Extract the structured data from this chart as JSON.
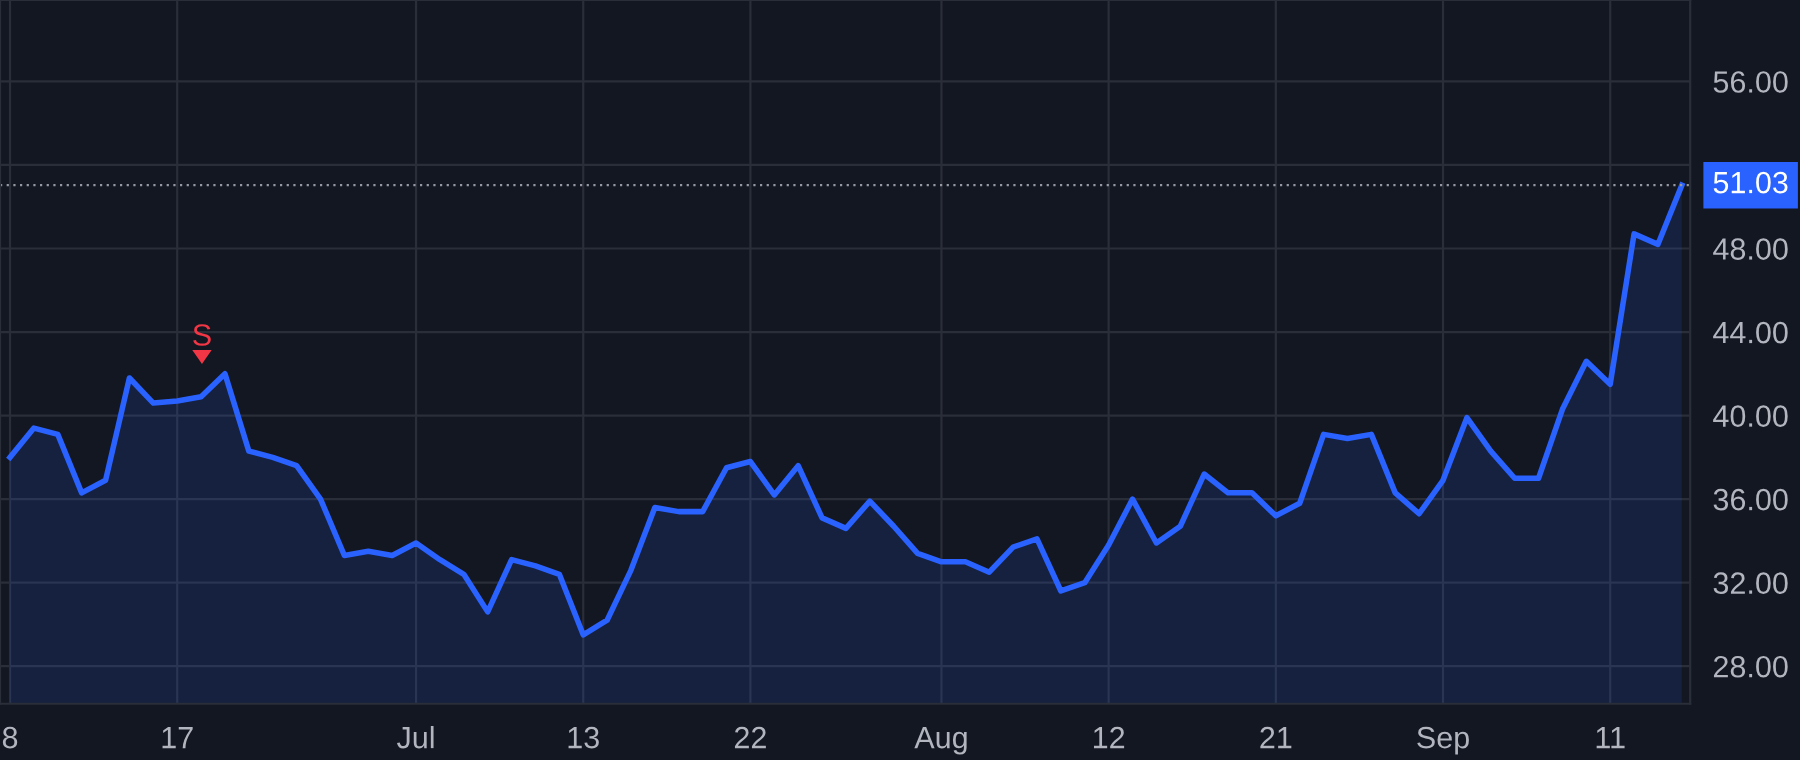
{
  "chart_data": {
    "type": "area",
    "categories": [
      "8",
      null,
      null,
      null,
      null,
      null,
      null,
      "17",
      null,
      null,
      null,
      null,
      null,
      null,
      null,
      null,
      null,
      "Jul",
      null,
      null,
      null,
      null,
      null,
      null,
      "13",
      null,
      null,
      null,
      null,
      null,
      null,
      "22",
      null,
      null,
      null,
      null,
      null,
      null,
      null,
      "Aug",
      null,
      null,
      null,
      null,
      null,
      null,
      "12",
      null,
      null,
      null,
      null,
      null,
      null,
      "21",
      null,
      null,
      null,
      null,
      null,
      null,
      "Sep",
      null,
      null,
      null,
      null,
      null,
      null,
      "11",
      null,
      null,
      null
    ],
    "series": [
      {
        "color": "#2962ff",
        "values": [
          38.0,
          39.4,
          39.1,
          36.3,
          36.9,
          41.8,
          40.6,
          40.7,
          40.9,
          42.0,
          38.3,
          38.0,
          37.6,
          36.0,
          33.3,
          33.5,
          33.3,
          33.9,
          33.1,
          32.4,
          30.6,
          33.1,
          32.8,
          32.4,
          29.5,
          30.2,
          32.6,
          35.6,
          35.4,
          35.4,
          37.5,
          37.8,
          36.2,
          37.6,
          35.1,
          34.6,
          35.9,
          34.7,
          33.4,
          33.0,
          33.0,
          32.5,
          33.7,
          34.1,
          31.6,
          32.0,
          33.8,
          36.0,
          33.9,
          34.7,
          37.2,
          36.3,
          36.3,
          35.2,
          35.8,
          39.1,
          38.9,
          39.1,
          36.3,
          35.3,
          36.9,
          39.9,
          38.3,
          37.0,
          37.0,
          40.3,
          42.6,
          41.5,
          48.7,
          48.2,
          51.03
        ]
      }
    ],
    "ylim": [
      26.2,
      59.9
    ],
    "yticks": [
      {
        "value": 28,
        "label": "28.00"
      },
      {
        "value": 32,
        "label": "32.00"
      },
      {
        "value": 36,
        "label": "36.00"
      },
      {
        "value": 40,
        "label": "40.00"
      },
      {
        "value": 44,
        "label": "44.00"
      },
      {
        "value": 48,
        "label": "48.00"
      },
      {
        "value": 52,
        "label": null
      },
      {
        "value": 56,
        "label": "56.00"
      }
    ],
    "grid": true,
    "ref_lines": [
      {
        "axis": "y",
        "value": 51.03,
        "label": "51.03",
        "color": "#9598a1",
        "line_style": "dotted"
      }
    ],
    "annotations": [
      "S"
    ]
  }
}
